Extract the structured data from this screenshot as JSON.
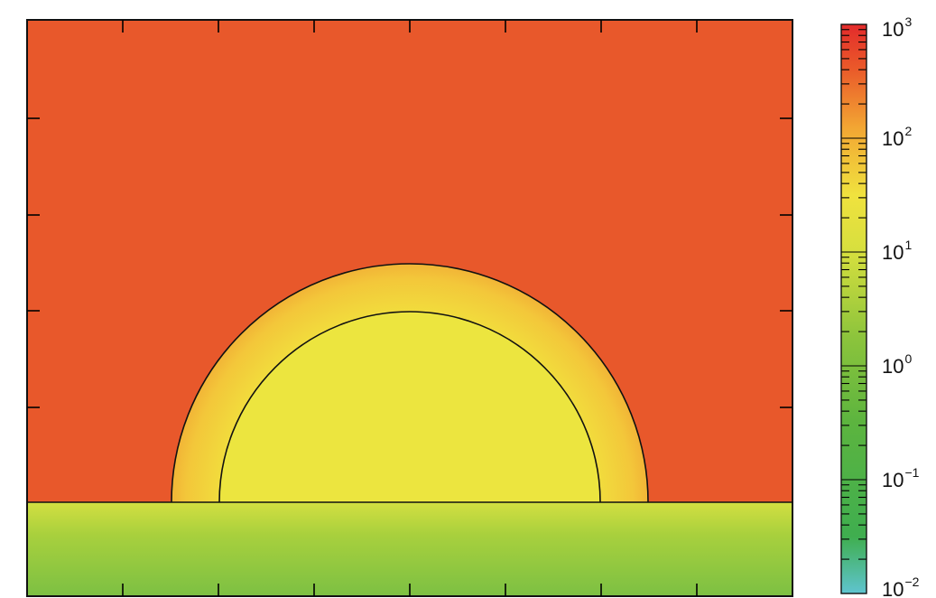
{
  "chart_data": {
    "type": "heatmap",
    "title": "",
    "xlabel": "",
    "ylabel": "",
    "colorbar": {
      "scale": "log",
      "range": [
        0.01,
        1000
      ],
      "ticks": [
        {
          "base": "10",
          "exp": "3",
          "value": 1000
        },
        {
          "base": "10",
          "exp": "2",
          "value": 100
        },
        {
          "base": "10",
          "exp": "1",
          "value": 10
        },
        {
          "base": "10",
          "exp": "0",
          "value": 1
        },
        {
          "base": "10",
          "exp": "−1",
          "value": 0.1
        },
        {
          "base": "10",
          "exp": "−2",
          "value": 0.01
        }
      ],
      "colors": [
        "#5fc4cf",
        "#3fae4f",
        "#6cba3c",
        "#b9d23a",
        "#eae33c",
        "#f2b438",
        "#ef7f2e",
        "#e8542a",
        "#e32b2b"
      ]
    },
    "regions": [
      {
        "name": "",
        "color": "#e8582b",
        "approx_value": 250
      },
      {
        "name": "",
        "color": "#f1d23b",
        "approx_value": 40
      },
      {
        "name": "",
        "color": "#ece53f",
        "approx_value": 20
      },
      {
        "name": "",
        "color": "#8cc447",
        "approx_value": 2
      }
    ],
    "grid": false,
    "legend": "right"
  }
}
